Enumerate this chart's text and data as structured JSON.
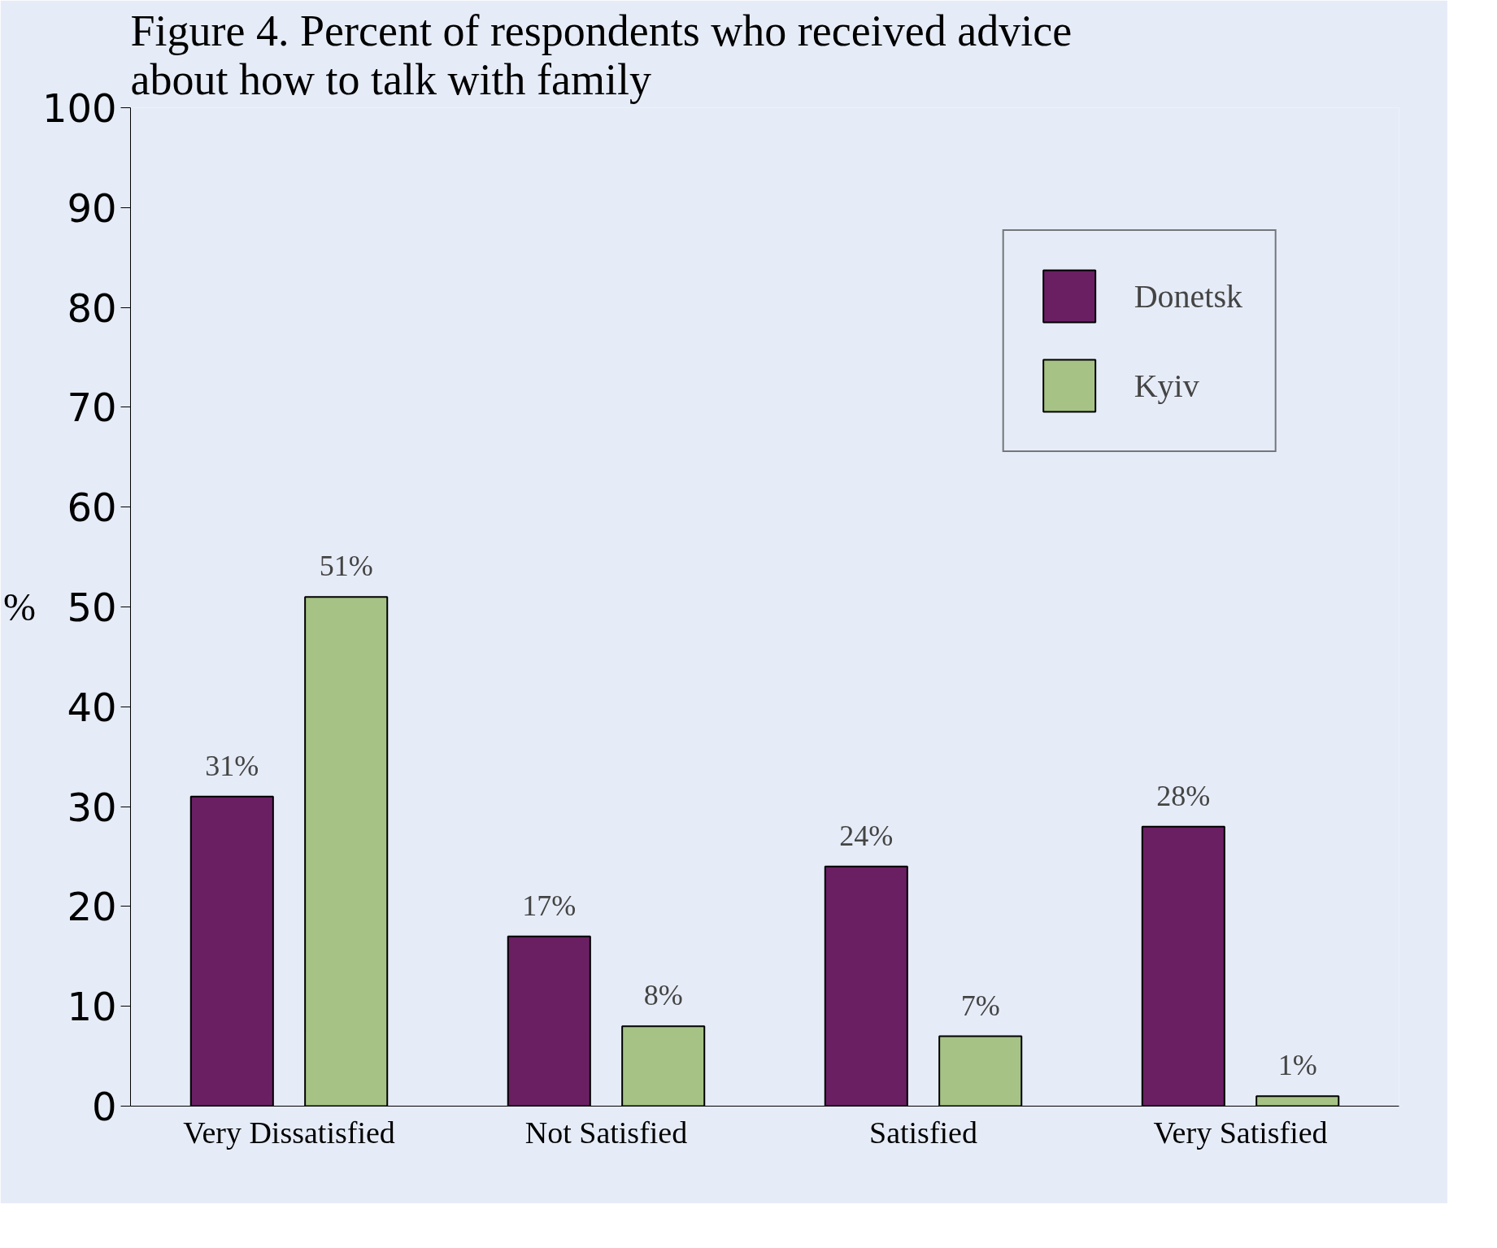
{
  "chart_data": {
    "type": "bar",
    "title": "Figure 4. Percent of respondents who received advice about how to talk with family",
    "ylabel": "%",
    "categories": [
      "Very Dissatisfied",
      "Not Satisfied",
      "Satisfied",
      "Very Satisfied"
    ],
    "series": [
      {
        "name": "Donetsk",
        "color": "#6a1f63",
        "values": [
          31,
          17,
          24,
          28
        ],
        "value_labels": [
          "31%",
          "17%",
          "24%",
          "28%"
        ]
      },
      {
        "name": "Kyiv",
        "color": "#a6c385",
        "values": [
          51,
          8,
          7,
          1
        ],
        "value_labels": [
          "51%",
          "8%",
          "7%",
          "1%"
        ]
      }
    ],
    "ylim": [
      0,
      100
    ],
    "yticks": [
      0,
      10,
      20,
      30,
      40,
      50,
      60,
      70,
      80,
      90,
      100
    ],
    "grid": false,
    "legend": "top right"
  }
}
